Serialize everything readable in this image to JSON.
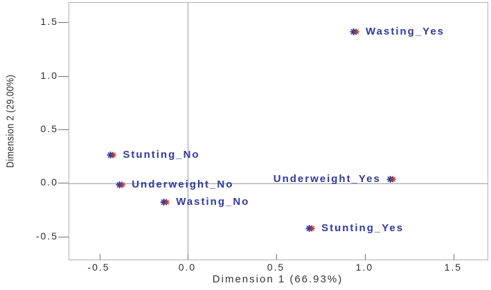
{
  "figure": {
    "background": "#ffffff",
    "frame_color": "#b0b0b0",
    "reference_line_color": "#9b9b9b",
    "tick_color": "#6f6f6f",
    "tick_label_color": "#2b2b2b",
    "axis_title_color": "#333333"
  },
  "chart_data": {
    "type": "scatter",
    "title": "",
    "xlabel": "Dimension 1 (66.93%)",
    "ylabel": "Dimension 2 (29.00%)",
    "xlim": [
      -0.67,
      1.69
    ],
    "ylim": [
      -0.71,
      1.69
    ],
    "grid": false,
    "legend": "none",
    "reference_lines": {
      "x": 0,
      "y": 0
    },
    "x_ticks": [
      {
        "value": -0.5,
        "label": "-0.5"
      },
      {
        "value": 0.0,
        "label": "0.0"
      },
      {
        "value": 0.5,
        "label": "0.5"
      },
      {
        "value": 1.0,
        "label": "1.0"
      },
      {
        "value": 1.5,
        "label": "1.5"
      }
    ],
    "y_ticks": [
      {
        "value": 1.5,
        "label": "1.5"
      },
      {
        "value": 1.0,
        "label": "1.0"
      },
      {
        "value": 0.5,
        "label": "0.5"
      },
      {
        "value": 0.0,
        "label": "0.0"
      },
      {
        "value": -0.5,
        "label": "-0.5"
      }
    ],
    "marker": {
      "shape": "overlapping-asterisks",
      "blue": "#2b35a8",
      "red": "#a33b38"
    },
    "point_label_color": "#2e3a9e",
    "points": [
      {
        "label": "Wasting_Yes",
        "x": 0.94,
        "y": 1.42,
        "label_side": "right"
      },
      {
        "label": "Stunting_No",
        "x": -0.43,
        "y": 0.27,
        "label_side": "right"
      },
      {
        "label": "Underweight_No",
        "x": -0.38,
        "y": -0.01,
        "label_side": "right"
      },
      {
        "label": "Underweight_Yes",
        "x": 1.15,
        "y": 0.04,
        "label_side": "left"
      },
      {
        "label": "Wasting_No",
        "x": -0.13,
        "y": -0.17,
        "label_side": "right"
      },
      {
        "label": "Stunting_Yes",
        "x": 0.69,
        "y": -0.42,
        "label_side": "right"
      }
    ]
  }
}
